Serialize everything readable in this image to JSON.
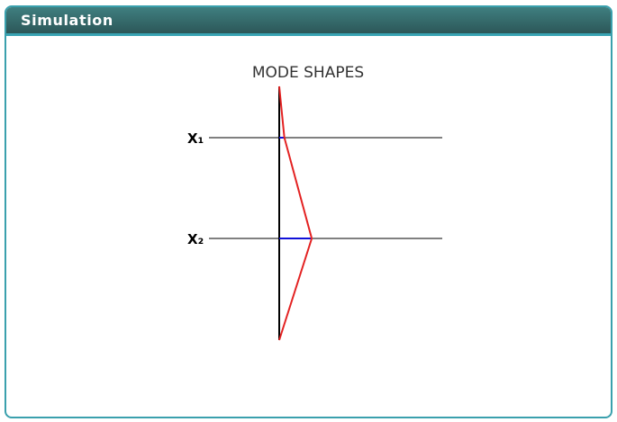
{
  "window": {
    "title": "Simulation"
  },
  "diagram": {
    "title": "MODE SHAPES",
    "levels": [
      {
        "label": "X₁",
        "displacement": 0.06
      },
      {
        "label": "X₂",
        "displacement": 0.38
      }
    ],
    "colors": {
      "axis": "#000000",
      "reference_line": "#000000",
      "mode_shape": "#e32222",
      "displacement": "#1010d8",
      "header": "#355f60",
      "border": "#3aa0ad"
    }
  }
}
